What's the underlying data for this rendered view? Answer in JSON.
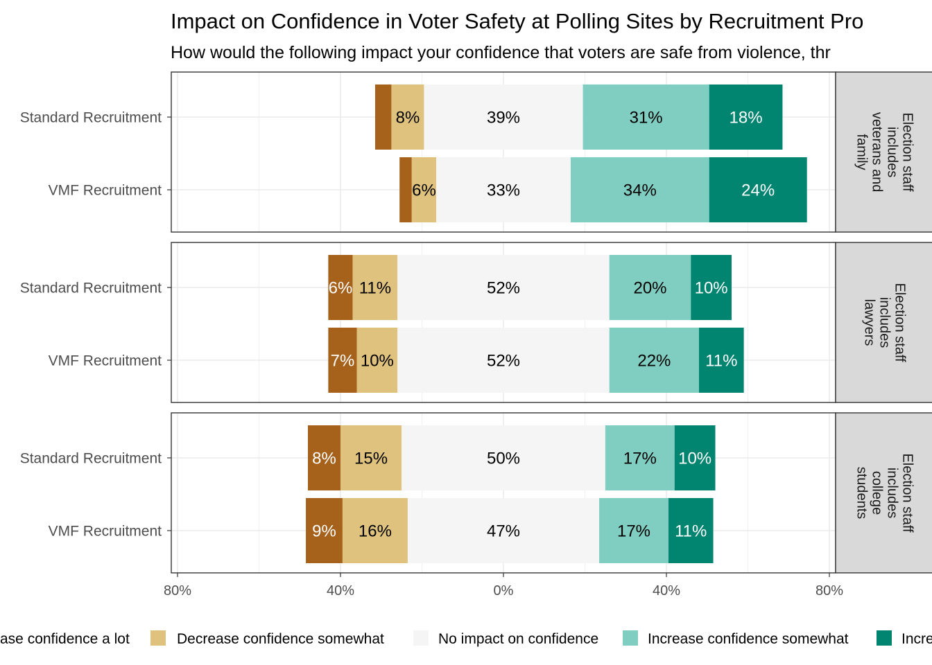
{
  "chart_data": {
    "type": "bar",
    "orientation": "horizontal-diverging-stacked",
    "title": "Impact on Confidence in Voter Safety at Polling Sites by Recruitment Pro",
    "subtitle": "How would the following impact your confidence that voters are safe from violence, thr",
    "xlim": [
      -80,
      80
    ],
    "x_ticks": [
      -80,
      -40,
      0,
      40,
      80
    ],
    "x_tick_labels": [
      "80%",
      "40%",
      "0%",
      "40%",
      "80%"
    ],
    "grid": true,
    "legend_position": "bottom",
    "categories": [
      "Standard Recruitment",
      "VMF Recruitment"
    ],
    "series": [
      {
        "name": "Decrease confidence a lot",
        "legend_label": "ase confidence a lot",
        "color": "#A6611A",
        "label_color": "#ffffff"
      },
      {
        "name": "Decrease confidence somewhat",
        "legend_label": "Decrease confidence somewhat",
        "color": "#DFC27D",
        "label_color": "#000000"
      },
      {
        "name": "No impact on confidence",
        "legend_label": "No impact on confidence",
        "color": "#F5F5F5",
        "label_color": "#000000"
      },
      {
        "name": "Increase confidence somewhat",
        "legend_label": "Increase confidence somewhat",
        "color": "#80CDC1",
        "label_color": "#000000"
      },
      {
        "name": "Increase confidence a lot",
        "legend_label": "Incre",
        "color": "#018571",
        "label_color": "#ffffff"
      }
    ],
    "panels": [
      {
        "strip_label": [
          "Election staff",
          "includes",
          "veterans and",
          "family"
        ],
        "rows": [
          {
            "category": "Standard Recruitment",
            "values": [
              4,
              8,
              39,
              31,
              18
            ],
            "labels": [
              "",
              "8%",
              "39%",
              "31%",
              "18%"
            ]
          },
          {
            "category": "VMF Recruitment",
            "values": [
              3,
              6,
              33,
              34,
              24
            ],
            "labels": [
              "",
              "6%",
              "33%",
              "34%",
              "24%"
            ]
          }
        ]
      },
      {
        "strip_label": [
          "Election staff",
          "includes",
          "lawyers"
        ],
        "rows": [
          {
            "category": "Standard Recruitment",
            "values": [
              6,
              11,
              52,
              20,
              10
            ],
            "labels": [
              "6%",
              "11%",
              "52%",
              "20%",
              "10%"
            ]
          },
          {
            "category": "VMF Recruitment",
            "values": [
              7,
              10,
              52,
              22,
              11
            ],
            "labels": [
              "7%",
              "10%",
              "52%",
              "22%",
              "11%"
            ]
          }
        ]
      },
      {
        "strip_label": [
          "Election staff",
          "includes",
          "college",
          "students"
        ],
        "rows": [
          {
            "category": "Standard Recruitment",
            "values": [
              8,
              15,
              50,
              17,
              10
            ],
            "labels": [
              "8%",
              "15%",
              "50%",
              "17%",
              "10%"
            ]
          },
          {
            "category": "VMF Recruitment",
            "values": [
              9,
              16,
              47,
              17,
              11
            ],
            "labels": [
              "9%",
              "16%",
              "47%",
              "17%",
              "11%"
            ]
          }
        ]
      }
    ]
  }
}
